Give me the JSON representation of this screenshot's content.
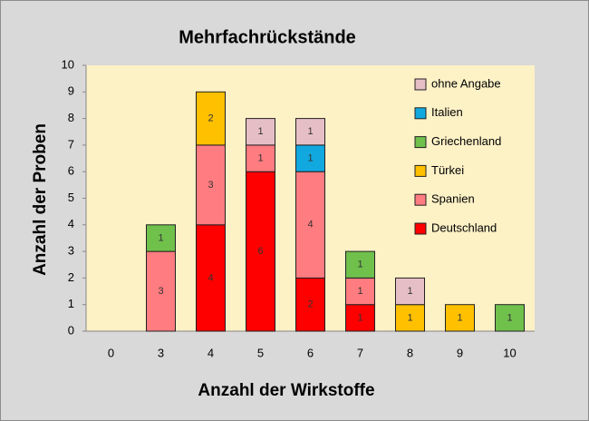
{
  "chart_data": {
    "type": "stacked_bar",
    "title": "Mehrfachrückstände",
    "x_label": "Anzahl der Wirkstoffe",
    "y_label": "Anzahl der Proben",
    "categories": [
      "0",
      "3",
      "4",
      "5",
      "6",
      "7",
      "8",
      "9",
      "10"
    ],
    "series": [
      {
        "name": "Deutschland",
        "color": "#ff0000",
        "values": [
          null,
          null,
          4,
          6,
          2,
          1,
          null,
          null,
          null
        ]
      },
      {
        "name": "Spanien",
        "color": "#ff7c80",
        "values": [
          null,
          3,
          3,
          1,
          4,
          1,
          null,
          null,
          null
        ]
      },
      {
        "name": "Türkei",
        "color": "#ffc000",
        "values": [
          null,
          null,
          2,
          null,
          null,
          null,
          1,
          1,
          null
        ]
      },
      {
        "name": "Griechenland",
        "color": "#70c04c",
        "values": [
          null,
          1,
          null,
          null,
          null,
          1,
          null,
          null,
          1
        ]
      },
      {
        "name": "Italien",
        "color": "#11a8e0",
        "values": [
          null,
          null,
          null,
          null,
          1,
          null,
          null,
          null,
          null
        ]
      },
      {
        "name": "ohne Angabe",
        "color": "#e6bfc6",
        "values": [
          null,
          null,
          null,
          1,
          1,
          null,
          1,
          null,
          null
        ]
      }
    ],
    "ylim": [
      0,
      10
    ],
    "yticks": [
      0,
      1,
      2,
      3,
      4,
      5,
      6,
      7,
      8,
      9,
      10
    ]
  }
}
